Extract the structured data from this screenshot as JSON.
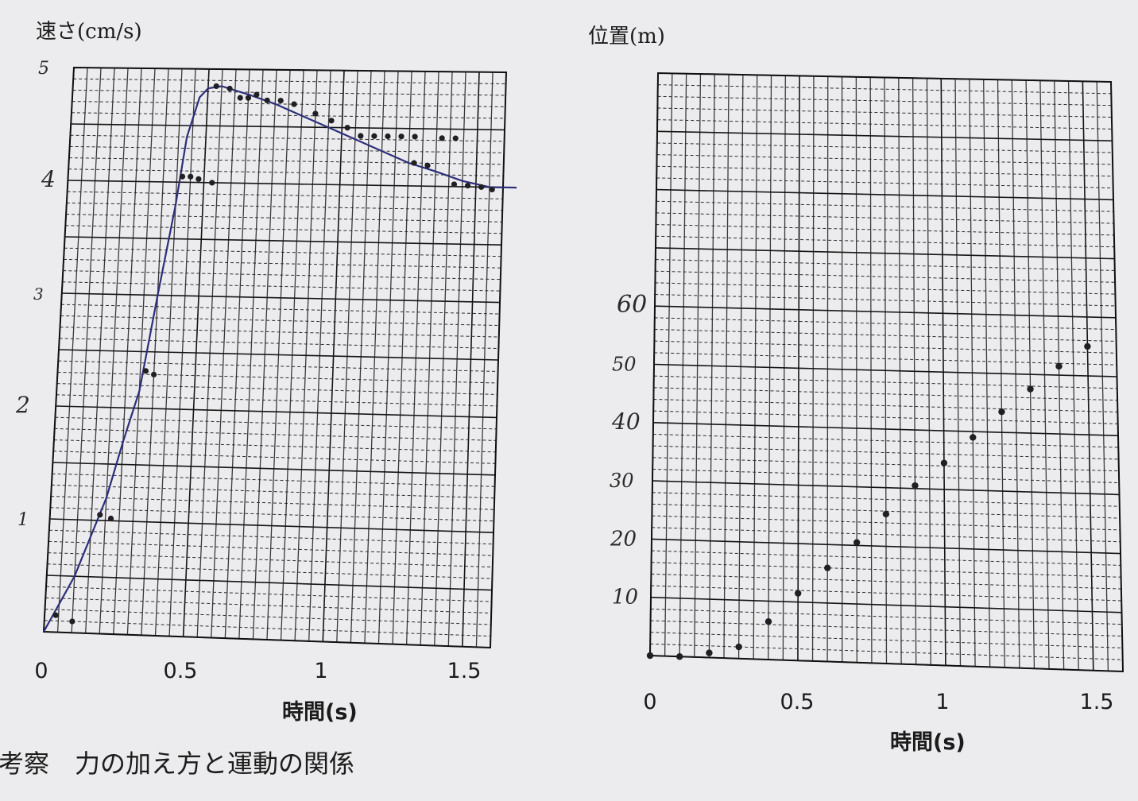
{
  "chart_data": [
    {
      "type": "line",
      "ylabel": "速さ(cm/s)",
      "xlabel": "時間(s)",
      "x_ticks": [
        "0",
        "0.5",
        "1",
        "1.5"
      ],
      "y_ticks_handwritten": [
        "1",
        "2",
        "3",
        "4",
        "5"
      ],
      "xlim": [
        0,
        1.6
      ],
      "ylim": [
        0,
        50
      ],
      "points": [
        [
          0.04,
          1.5
        ],
        [
          0.1,
          1.0
        ],
        [
          0.18,
          10.5
        ],
        [
          0.22,
          10.2
        ],
        [
          0.32,
          23.3
        ],
        [
          0.35,
          23.0
        ],
        [
          0.42,
          40.5
        ],
        [
          0.45,
          40.5
        ],
        [
          0.48,
          40.3
        ],
        [
          0.53,
          40.0
        ],
        [
          0.53,
          48.5
        ],
        [
          0.58,
          48.3
        ],
        [
          0.62,
          47.5
        ],
        [
          0.65,
          47.5
        ],
        [
          0.68,
          47.8
        ],
        [
          0.72,
          47.3
        ],
        [
          0.77,
          47.3
        ],
        [
          0.82,
          47.0
        ],
        [
          0.9,
          46.2
        ],
        [
          0.96,
          45.6
        ],
        [
          1.02,
          45.0
        ],
        [
          1.07,
          44.3
        ],
        [
          1.12,
          44.3
        ],
        [
          1.17,
          44.3
        ],
        [
          1.22,
          44.3
        ],
        [
          1.27,
          44.3
        ],
        [
          1.27,
          42.0
        ],
        [
          1.32,
          41.8
        ],
        [
          1.37,
          44.2
        ],
        [
          1.42,
          44.2
        ],
        [
          1.42,
          40.2
        ],
        [
          1.47,
          40.1
        ],
        [
          1.52,
          40.0
        ],
        [
          1.56,
          39.8
        ]
      ],
      "trend": [
        [
          0.0,
          0.0
        ],
        [
          0.1,
          5.0
        ],
        [
          0.2,
          12.0
        ],
        [
          0.25,
          17.0
        ],
        [
          0.3,
          21.5
        ],
        [
          0.35,
          30.0
        ],
        [
          0.4,
          38.0
        ],
        [
          0.43,
          44.0
        ],
        [
          0.47,
          47.5
        ],
        [
          0.5,
          48.3
        ],
        [
          0.55,
          48.5
        ],
        [
          0.65,
          47.8
        ],
        [
          0.75,
          47.0
        ],
        [
          0.85,
          46.0
        ],
        [
          0.95,
          45.0
        ],
        [
          1.05,
          44.0
        ],
        [
          1.15,
          43.0
        ],
        [
          1.25,
          42.0
        ],
        [
          1.35,
          41.3
        ],
        [
          1.45,
          40.5
        ],
        [
          1.55,
          40.0
        ],
        [
          1.65,
          40.0
        ]
      ]
    },
    {
      "type": "scatter",
      "ylabel": "位置(m)",
      "xlabel": "時間(s)",
      "x_ticks": [
        "0",
        "0.5",
        "1",
        "1.5"
      ],
      "y_ticks_handwritten": [
        "10",
        "20",
        "30",
        "40",
        "50",
        "60"
      ],
      "xlim": [
        0,
        1.6
      ],
      "ylim": [
        0,
        100
      ],
      "points": [
        [
          0.0,
          0.0
        ],
        [
          0.1,
          0.0
        ],
        [
          0.2,
          0.8
        ],
        [
          0.3,
          2.0
        ],
        [
          0.4,
          6.5
        ],
        [
          0.5,
          11.5
        ],
        [
          0.6,
          16.0
        ],
        [
          0.7,
          20.5
        ],
        [
          0.8,
          25.5
        ],
        [
          0.9,
          30.5
        ],
        [
          1.0,
          34.5
        ],
        [
          1.1,
          39.0
        ],
        [
          1.2,
          43.5
        ],
        [
          1.3,
          47.5
        ],
        [
          1.4,
          51.5
        ],
        [
          1.5,
          55.0
        ]
      ]
    }
  ],
  "caption": "考察　力の加え方と運動の関係"
}
